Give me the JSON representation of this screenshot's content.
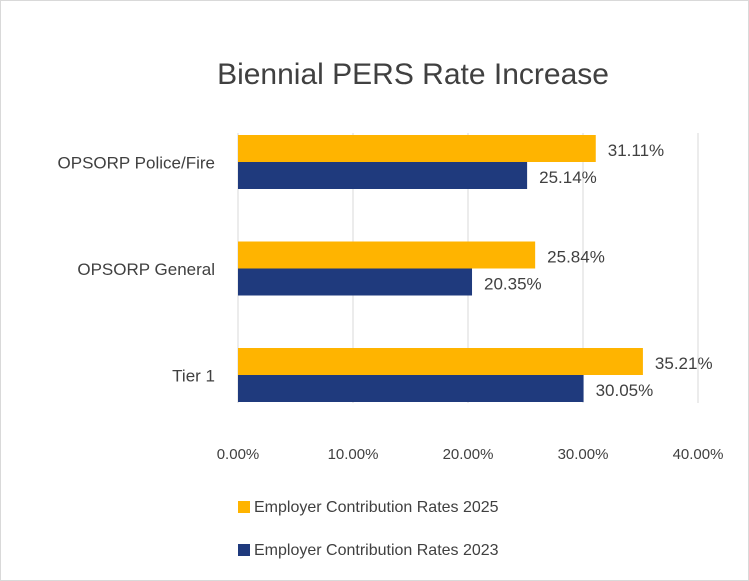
{
  "chart_data": {
    "type": "bar",
    "orientation": "horizontal",
    "title": "Biennial PERS Rate Increase",
    "categories": [
      "OPSORP Police/Fire",
      "OPSORP General",
      "Tier 1"
    ],
    "series": [
      {
        "name": "Employer Contribution Rates 2025",
        "color": "#ffb400",
        "values": [
          31.11,
          25.84,
          35.21
        ],
        "value_labels": [
          "31.11%",
          "25.84%",
          "35.21%"
        ]
      },
      {
        "name": "Employer Contribution Rates 2023",
        "color": "#1f3a7d",
        "values": [
          25.14,
          20.35,
          30.05
        ],
        "value_labels": [
          "25.14%",
          "20.35%",
          "30.05%"
        ]
      }
    ],
    "xlim": [
      0,
      40
    ],
    "xticks": [
      {
        "value": 0,
        "label": "0.00%"
      },
      {
        "value": 10,
        "label": "10.00%"
      },
      {
        "value": 20,
        "label": "20.00%"
      },
      {
        "value": 30,
        "label": "30.00%"
      },
      {
        "value": 40,
        "label": "40.00%"
      }
    ],
    "grid": true,
    "legend": "bottom"
  }
}
